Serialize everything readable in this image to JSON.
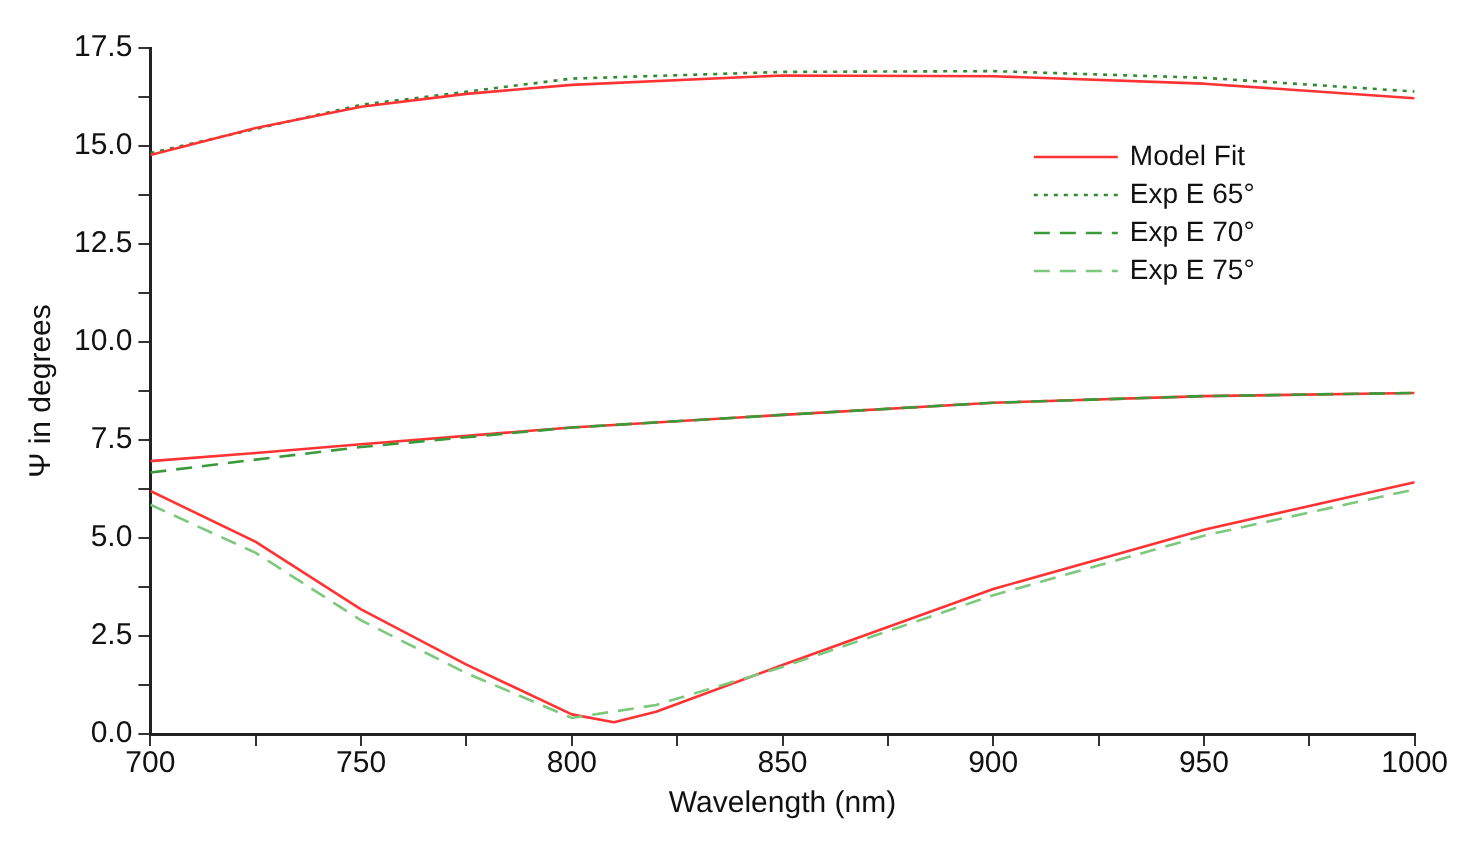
{
  "chart_data": {
    "type": "line",
    "xlabel": "Wavelength (nm)",
    "ylabel": "Ψ in degrees",
    "xlim": [
      700,
      1000
    ],
    "ylim": [
      0,
      17.5
    ],
    "xticks": [
      700,
      {
        "value": 725,
        "label": null
      },
      750,
      {
        "value": 775,
        "label": null
      },
      800,
      {
        "value": 825,
        "label": null
      },
      850,
      {
        "value": 875,
        "label": null
      },
      900,
      {
        "value": 925,
        "label": null
      },
      950,
      {
        "value": 975,
        "label": null
      },
      1000
    ],
    "yticks": [
      {
        "value": 0,
        "label": "0.0"
      },
      {
        "value": 1.25,
        "label": null
      },
      2.5,
      {
        "value": 3.75,
        "label": null
      },
      {
        "value": 5,
        "label": "5.0"
      },
      {
        "value": 6.25,
        "label": null
      },
      7.5,
      {
        "value": 8.75,
        "label": null
      },
      {
        "value": 10,
        "label": "10.0"
      },
      {
        "value": 11.25,
        "label": null
      },
      12.5,
      {
        "value": 13.75,
        "label": null
      },
      {
        "value": 15,
        "label": "15.0"
      },
      {
        "value": 16.25,
        "label": null
      },
      17.5
    ],
    "grid": false,
    "legend": "top right",
    "marker": "none",
    "series": [
      {
        "name": "Model Fit",
        "color": "#ff3333",
        "line_style": "solid",
        "x": [
          700,
          725,
          750,
          775,
          800,
          850,
          900,
          950,
          1000
        ],
        "values": [
          14.77,
          15.46,
          16.0,
          16.33,
          16.56,
          16.8,
          16.78,
          16.59,
          16.22
        ]
      },
      {
        "name": "Exp E 65°",
        "color": "#2e8b2e",
        "line_style": "dotted",
        "x": [
          700,
          750,
          800,
          850,
          900,
          950,
          1000
        ],
        "values": [
          14.82,
          16.05,
          16.72,
          16.89,
          16.91,
          16.74,
          16.39
        ]
      },
      {
        "name": "Exp E 70°",
        "color": "#3a9a3a",
        "line_style": "dashed",
        "x": [
          700,
          725,
          750,
          800,
          850,
          900,
          950,
          1000
        ],
        "values": [
          6.67,
          7.0,
          7.32,
          7.82,
          8.14,
          8.45,
          8.62,
          8.7
        ]
      },
      {
        "name": "Exp E 75°",
        "color": "#7cc87c",
        "line_style": "dashed",
        "x": [
          700,
          725,
          750,
          775,
          800,
          820,
          850,
          900,
          950,
          1000
        ],
        "values": [
          5.85,
          4.62,
          2.9,
          1.55,
          0.41,
          0.74,
          1.71,
          3.54,
          5.06,
          6.24
        ]
      },
      {
        "color": "#ff3333",
        "line_style": "solid",
        "x": [
          700,
          725,
          750,
          800,
          850,
          900,
          950,
          1000
        ],
        "values": [
          6.96,
          7.17,
          7.39,
          7.82,
          8.14,
          8.45,
          8.62,
          8.7
        ]
      },
      {
        "color": "#ff3333",
        "line_style": "solid",
        "x": [
          700,
          725,
          750,
          775,
          800,
          810,
          820,
          850,
          900,
          950,
          1000
        ],
        "values": [
          6.2,
          4.9,
          3.18,
          1.77,
          0.5,
          0.3,
          0.57,
          1.76,
          3.7,
          5.21,
          6.42
        ]
      }
    ]
  }
}
